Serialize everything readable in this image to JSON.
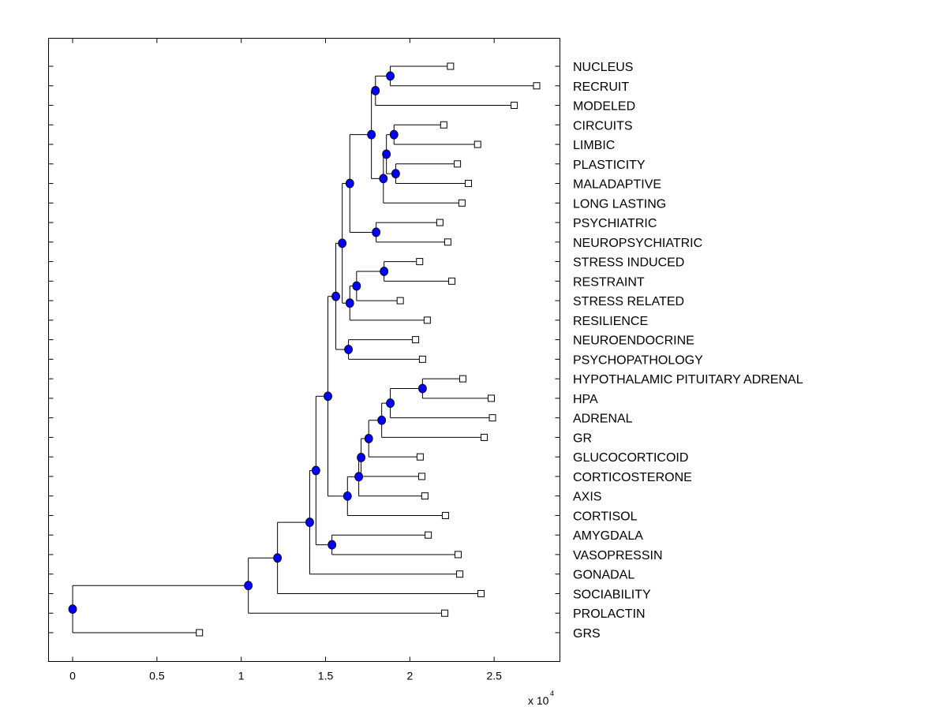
{
  "chart_data": {
    "type": "dendrogram",
    "title": "",
    "xlabel": "",
    "ylabel": "",
    "x_multiplier": {
      "base": "x 10",
      "exponent": "4"
    },
    "xlim": [
      -0.143,
      2.89
    ],
    "x_ticks": [
      0,
      0.5,
      1,
      1.5,
      2,
      2.5
    ],
    "x_tick_labels": [
      "0",
      "0.5",
      "1",
      "1.5",
      "2",
      "2.5"
    ],
    "grid": false,
    "colors": {
      "node": "#0000ff",
      "leaf": "#ffffff",
      "line": "#000000"
    },
    "leaves": [
      "NUCLEUS",
      "RECRUIT",
      "MODELED",
      "CIRCUITS",
      "LIMBIC",
      "PLASTICITY",
      "MALADAPTIVE",
      "LONG LASTING",
      "PSYCHIATRIC",
      "NEUROPSYCHIATRIC",
      "STRESS INDUCED",
      "RESTRAINT",
      "STRESS RELATED",
      "RESILIENCE",
      "NEUROENDOCRINE",
      "PSYCHOPATHOLOGY",
      "HYPOTHALAMIC PITUITARY ADRENAL",
      "HPA",
      "ADRENAL",
      "GR",
      "GLUCOCORTICOID",
      "CORTICOSTERONE",
      "AXIS",
      "CORTISOL",
      "AMYGDALA",
      "VASOPRESSIN",
      "GONADAL",
      "SOCIABILITY",
      "PROLACTIN",
      "GRS"
    ],
    "tree": {
      "height": 0,
      "children": [
        {
          "height": 1.042,
          "children": [
            {
              "height": 1.215,
              "children": [
                {
                  "height": 1.406,
                  "children": [
                    {
                      "height": 1.443,
                      "children": [
                        {
                          "height": 1.514,
                          "children": [
                            {
                              "height": 1.561,
                              "children": [
                                {
                                  "height": 1.599,
                                  "children": [
                                    {
                                      "height": 1.644,
                                      "children": [
                                        {
                                          "height": 1.772,
                                          "children": [
                                            {
                                              "height": 1.796,
                                              "children": [
                                                {
                                                  "height": 1.884,
                                                  "children": [
                                                    {
                                                      "leaf": 0,
                                                      "height": 2.241
                                                    },
                                                    {
                                                      "leaf": 1,
                                                      "height": 2.752
                                                    }
                                                  ]
                                                },
                                                {
                                                  "leaf": 2,
                                                  "height": 2.619
                                                }
                                              ]
                                            },
                                            {
                                              "height": 1.843,
                                              "children": [
                                                {
                                                  "height": 1.861,
                                                  "children": [
                                                    {
                                                      "height": 1.906,
                                                      "children": [
                                                        {
                                                          "leaf": 3,
                                                          "height": 2.201
                                                        },
                                                        {
                                                          "leaf": 4,
                                                          "height": 2.402
                                                        }
                                                      ]
                                                    },
                                                    {
                                                      "height": 1.916,
                                                      "children": [
                                                        {
                                                          "leaf": 5,
                                                          "height": 2.282
                                                        },
                                                        {
                                                          "leaf": 6,
                                                          "height": 2.347
                                                        }
                                                      ]
                                                    }
                                                  ]
                                                },
                                                {
                                                  "leaf": 7,
                                                  "height": 2.309
                                                }
                                              ]
                                            }
                                          ]
                                        },
                                        {
                                          "height": 1.8,
                                          "children": [
                                            {
                                              "leaf": 8,
                                              "height": 2.178
                                            },
                                            {
                                              "leaf": 9,
                                              "height": 2.225
                                            }
                                          ]
                                        }
                                      ]
                                    },
                                    {
                                      "height": 1.644,
                                      "children": [
                                        {
                                          "height": 1.684,
                                          "children": [
                                            {
                                              "height": 1.847,
                                              "children": [
                                                {
                                                  "leaf": 10,
                                                  "height": 2.058
                                                },
                                                {
                                                  "leaf": 11,
                                                  "height": 2.249
                                                }
                                              ]
                                            },
                                            {
                                              "leaf": 12,
                                              "height": 1.943
                                            }
                                          ]
                                        },
                                        {
                                          "leaf": 13,
                                          "height": 2.103
                                        }
                                      ]
                                    }
                                  ]
                                },
                                {
                                  "height": 1.636,
                                  "children": [
                                    {
                                      "leaf": 14,
                                      "height": 2.034
                                    },
                                    {
                                      "leaf": 15,
                                      "height": 2.075
                                    }
                                  ]
                                }
                              ]
                            },
                            {
                              "height": 1.63,
                              "children": [
                                {
                                  "height": 1.697,
                                  "children": [
                                    {
                                      "height": 1.711,
                                      "children": [
                                        {
                                          "height": 1.756,
                                          "children": [
                                            {
                                              "height": 1.833,
                                              "children": [
                                                {
                                                  "height": 1.884,
                                                  "children": [
                                                    {
                                                      "height": 2.075,
                                                      "children": [
                                                        {
                                                          "leaf": 16,
                                                          "height": 2.314
                                                        },
                                                        {
                                                          "leaf": 17,
                                                          "height": 2.483
                                                        }
                                                      ]
                                                    },
                                                    {
                                                      "leaf": 18,
                                                      "height": 2.49
                                                    }
                                                  ]
                                                },
                                                {
                                                  "leaf": 19,
                                                  "height": 2.441
                                                }
                                              ]
                                            },
                                            {
                                              "leaf": 20,
                                              "height": 2.061
                                            }
                                          ]
                                        },
                                        {
                                          "leaf": 21,
                                          "height": 2.071
                                        }
                                      ]
                                    },
                                    {
                                      "leaf": 22,
                                      "height": 2.089
                                    }
                                  ]
                                },
                                {
                                  "leaf": 23,
                                  "height": 2.211
                                }
                              ]
                            }
                          ]
                        },
                        {
                          "height": 1.538,
                          "children": [
                            {
                              "leaf": 24,
                              "height": 2.109
                            },
                            {
                              "leaf": 25,
                              "height": 2.286
                            }
                          ]
                        }
                      ]
                    },
                    {
                      "leaf": 26,
                      "height": 2.296
                    }
                  ]
                },
                {
                  "leaf": 27,
                  "height": 2.422
                }
              ]
            },
            {
              "leaf": 28,
              "height": 2.207
            }
          ]
        },
        {
          "leaf": 29,
          "height": 0.752
        }
      ]
    }
  }
}
